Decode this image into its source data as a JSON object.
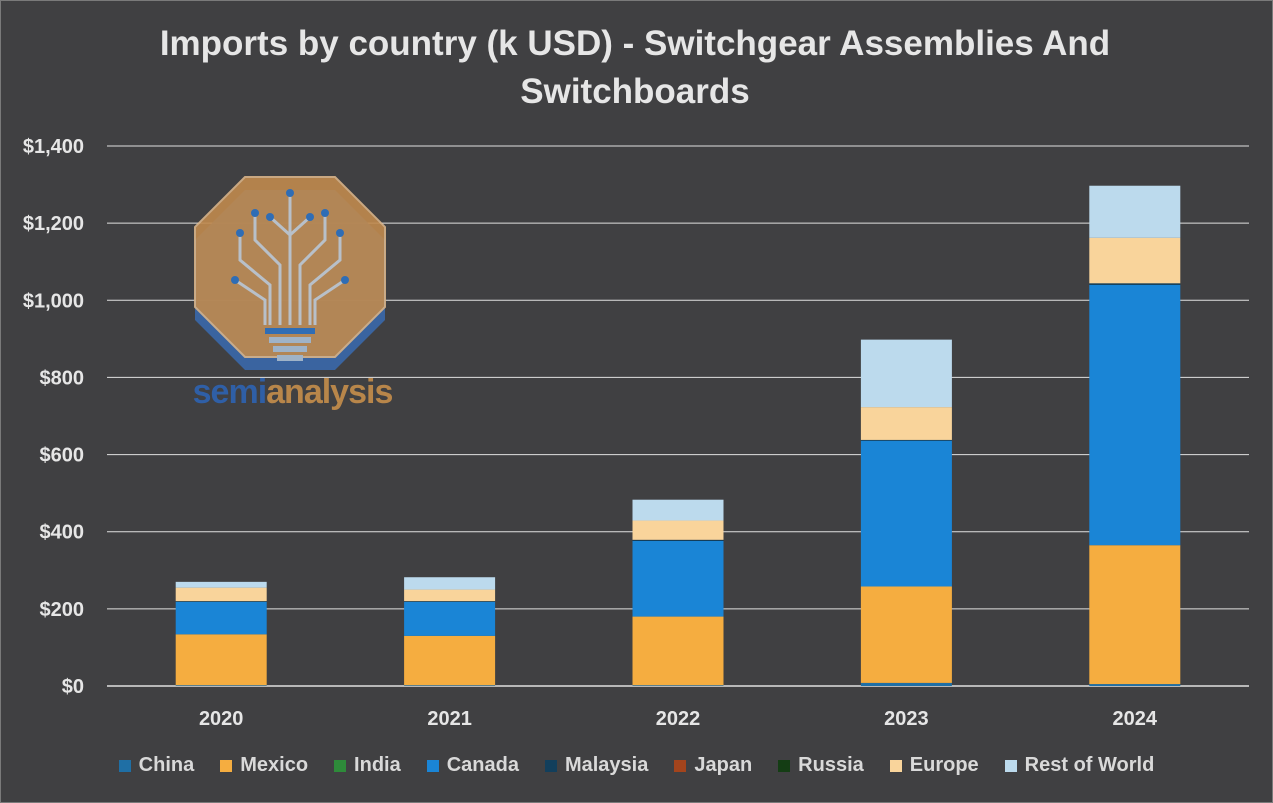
{
  "chart_data": {
    "type": "bar",
    "stacked": true,
    "title": "Imports by country (k USD) - Switchgear Assemblies And Switchboards",
    "categories": [
      "2020",
      "2021",
      "2022",
      "2023",
      "2024"
    ],
    "ylim": [
      0,
      1400
    ],
    "yticks": [
      0,
      200,
      400,
      600,
      800,
      1000,
      1200,
      1400
    ],
    "ytick_labels": [
      "$0",
      "$200",
      "$400",
      "$600",
      "$800",
      "$1,000",
      "$1,200",
      "$1,400"
    ],
    "legend_position": "bottom",
    "grid": true,
    "series": [
      {
        "name": "China",
        "color": "#1f6fa5",
        "values": [
          2,
          2,
          2,
          8,
          5
        ]
      },
      {
        "name": "Mexico",
        "color": "#f5ad40",
        "values": [
          132,
          128,
          178,
          250,
          360
        ]
      },
      {
        "name": "India",
        "color": "#2e8b3a",
        "values": [
          0,
          0,
          0,
          0,
          0
        ]
      },
      {
        "name": "Canada",
        "color": "#1a85d6",
        "values": [
          84,
          88,
          196,
          378,
          675
        ]
      },
      {
        "name": "Malaysia",
        "color": "#123f5c",
        "values": [
          2,
          2,
          3,
          2,
          4
        ]
      },
      {
        "name": "Japan",
        "color": "#a3441c",
        "values": [
          0,
          0,
          0,
          0,
          0
        ]
      },
      {
        "name": "Russia",
        "color": "#143d14",
        "values": [
          0,
          0,
          0,
          0,
          0
        ]
      },
      {
        "name": "Europe",
        "color": "#f9d49b",
        "values": [
          35,
          30,
          50,
          85,
          118
        ]
      },
      {
        "name": "Rest of World",
        "color": "#bcdaed",
        "values": [
          15,
          32,
          54,
          175,
          135
        ]
      }
    ]
  },
  "logo": {
    "word_part1": "semi",
    "word_part2": "analysis"
  }
}
